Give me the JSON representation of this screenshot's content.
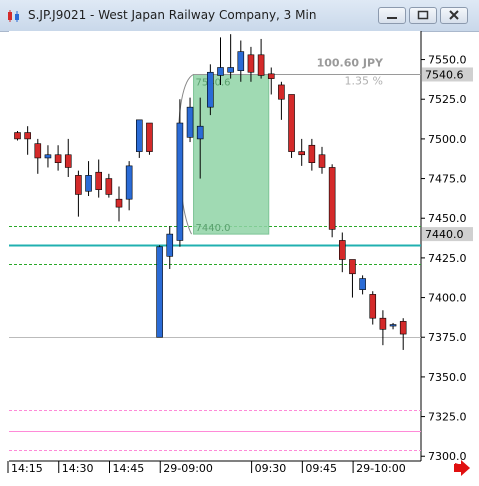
{
  "window": {
    "title": "S.JP.J9021 - West Japan Railway Company, 3 Min",
    "icons": [
      "chart-candle-icon",
      "minimize-icon",
      "restore-icon",
      "close-icon"
    ]
  },
  "chart_data": {
    "type": "candlestick",
    "symbol": "S.JP.J9021",
    "timeframe": "3 Min",
    "ylim": [
      7297,
      7568
    ],
    "y_ticks": [
      "7550.0",
      "7525.0",
      "7500.0",
      "7475.0",
      "7450.0",
      "7425.0",
      "7400.0",
      "7375.0",
      "7350.0",
      "7325.0",
      "7300.0"
    ],
    "x_ticks": [
      "14:15",
      "14:30",
      "14:45",
      "29-09:00",
      "09:30",
      "09:45",
      "29-10:00"
    ],
    "grid": false,
    "price_labels": {
      "current_high": "7540.6",
      "current_low": "7440.0"
    },
    "candles": [
      {
        "o": 7504,
        "h": 7505,
        "l": 7499,
        "c": 7500
      },
      {
        "o": 7504,
        "h": 7508,
        "l": 7490,
        "c": 7500
      },
      {
        "o": 7497,
        "h": 7500,
        "l": 7478,
        "c": 7488
      },
      {
        "o": 7488,
        "h": 7496,
        "l": 7482,
        "c": 7490
      },
      {
        "o": 7490,
        "h": 7496,
        "l": 7480,
        "c": 7485
      },
      {
        "o": 7490,
        "h": 7500,
        "l": 7476,
        "c": 7482
      },
      {
        "o": 7477,
        "h": 7480,
        "l": 7451,
        "c": 7465
      },
      {
        "o": 7467,
        "h": 7486,
        "l": 7464,
        "c": 7477
      },
      {
        "o": 7479,
        "h": 7487,
        "l": 7463,
        "c": 7468
      },
      {
        "o": 7475,
        "h": 7478,
        "l": 7463,
        "c": 7465
      },
      {
        "o": 7462,
        "h": 7470,
        "l": 7448,
        "c": 7457
      },
      {
        "o": 7462,
        "h": 7486,
        "l": 7455,
        "c": 7483
      },
      {
        "o": 7492,
        "h": 7512,
        "l": 7488,
        "c": 7512
      },
      {
        "o": 7510,
        "h": 7510,
        "l": 7490,
        "c": 7492
      },
      {
        "o": 7375,
        "h": 7433,
        "l": 7375,
        "c": 7432
      },
      {
        "o": 7426,
        "h": 7445,
        "l": 7418,
        "c": 7440
      },
      {
        "o": 7436,
        "h": 7525,
        "l": 7432,
        "c": 7510
      },
      {
        "o": 7501,
        "h": 7526,
        "l": 7498,
        "c": 7520
      },
      {
        "o": 7500,
        "h": 7526,
        "l": 7475,
        "c": 7508
      },
      {
        "o": 7520,
        "h": 7547,
        "l": 7515,
        "c": 7542
      },
      {
        "o": 7540,
        "h": 7564,
        "l": 7534,
        "c": 7545
      },
      {
        "o": 7542,
        "h": 7566,
        "l": 7538,
        "c": 7545
      },
      {
        "o": 7543,
        "h": 7562,
        "l": 7536,
        "c": 7555
      },
      {
        "o": 7553,
        "h": 7558,
        "l": 7536,
        "c": 7542
      },
      {
        "o": 7553,
        "h": 7563,
        "l": 7538,
        "c": 7540
      },
      {
        "o": 7541,
        "h": 7545,
        "l": 7528,
        "c": 7538
      },
      {
        "o": 7534,
        "h": 7536,
        "l": 7512,
        "c": 7525
      },
      {
        "o": 7528,
        "h": 7528,
        "l": 7488,
        "c": 7492
      },
      {
        "o": 7492,
        "h": 7500,
        "l": 7483,
        "c": 7490
      },
      {
        "o": 7496,
        "h": 7500,
        "l": 7480,
        "c": 7485
      },
      {
        "o": 7490,
        "h": 7495,
        "l": 7478,
        "c": 7482
      },
      {
        "o": 7482,
        "h": 7484,
        "l": 7438,
        "c": 7443
      },
      {
        "o": 7436,
        "h": 7441,
        "l": 7416,
        "c": 7424
      },
      {
        "o": 7424,
        "h": 7424,
        "l": 7400,
        "c": 7415
      },
      {
        "o": 7405,
        "h": 7414,
        "l": 7402,
        "c": 7412
      },
      {
        "o": 7402,
        "h": 7404,
        "l": 7383,
        "c": 7387
      },
      {
        "o": 7387,
        "h": 7392,
        "l": 7370,
        "c": 7380
      },
      {
        "o": 7383,
        "h": 7384,
        "l": 7380,
        "c": 7383
      },
      {
        "o": 7385,
        "h": 7387,
        "l": 7367,
        "c": 7377
      }
    ],
    "horizontal_lines": [
      {
        "value": 7433,
        "color": "#20b0b0",
        "style": "solid"
      },
      {
        "value": 7445,
        "color": "#2aa82a",
        "style": "dashed"
      },
      {
        "value": 7421,
        "color": "#2aa82a",
        "style": "dashed"
      },
      {
        "value": 7375,
        "color": "#bbbbbb",
        "style": "solid"
      },
      {
        "value": 7329,
        "color": "#ff8ad8",
        "style": "dashed"
      },
      {
        "value": 7316,
        "color": "#ff8ad8",
        "style": "solid"
      },
      {
        "value": 7304,
        "color": "#ff8ad8",
        "style": "dashed"
      }
    ],
    "measure_box": {
      "from": 7440.0,
      "to": 7540.6,
      "change": "100.60 JPY",
      "percent": "1.35 %",
      "from_label": "7440.0",
      "to_label": "7540.6",
      "fill": "#8fd3a6"
    },
    "colors": {
      "up": "#2a6bd6",
      "down": "#d42a2a",
      "axis_label_bg": "#d0d0d0"
    },
    "nav_arrow": "right-arrow-icon"
  }
}
